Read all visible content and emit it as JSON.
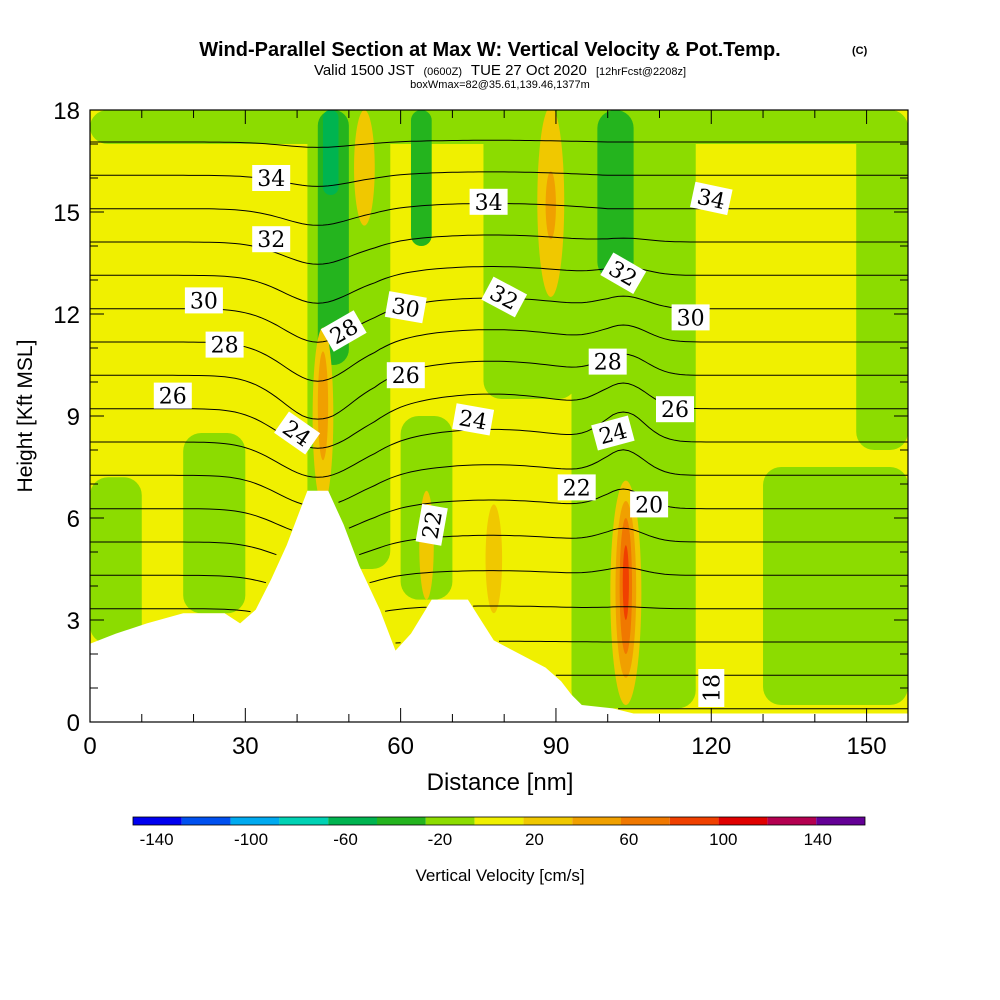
{
  "chart_data": {
    "type": "heatmap",
    "title": "Wind-Parallel Section at Max W: Vertical Velocity & Pot.Temp.",
    "title_tag": "(C)",
    "subtitle": {
      "valid": "Valid 1500 JST",
      "utc": "(0600Z)",
      "date": "TUE 27 Oct 2020",
      "fcst": "[12hrFcst@2208z]"
    },
    "box_info": "boxWmax=82@35.61,139.46,1377m",
    "xlabel": "Distance [nm]",
    "ylabel": "Height [Kft MSL]",
    "xlim": [
      0,
      158
    ],
    "ylim": [
      0,
      18
    ],
    "x_ticks": [
      0,
      30,
      60,
      90,
      120,
      150
    ],
    "y_ticks": [
      0,
      3,
      6,
      9,
      12,
      15,
      18
    ],
    "colorbar": {
      "label": "Vertical Velocity [cm/s]",
      "range": [
        -150,
        160
      ],
      "step": 20,
      "tick_values": [
        -140,
        -100,
        -60,
        -20,
        20,
        60,
        100,
        140
      ],
      "tick_labels": [
        "-140",
        "-100",
        "-60",
        "-20",
        "20",
        "60",
        "100",
        "140"
      ],
      "colors": [
        "#0000f0",
        "#0050f0",
        "#00aaf0",
        "#00d2b4",
        "#00b450",
        "#24b41e",
        "#8cdc00",
        "#f0f000",
        "#f0c800",
        "#f0a000",
        "#f07800",
        "#f04000",
        "#e00000",
        "#b40050",
        "#640096"
      ]
    },
    "field_color_levels": {
      "strong_down": "#00b450",
      "down": "#24b41e",
      "weak": "#8cdc00",
      "neutral": "#f0f000",
      "up": "#f0c800",
      "strong_up": "#f0a000",
      "max_up": "#f07800",
      "peak": "#f04000"
    },
    "terrain_profile": [
      [
        0,
        2.3
      ],
      [
        5,
        2.6
      ],
      [
        11,
        2.9
      ],
      [
        18,
        3.2
      ],
      [
        26,
        3.2
      ],
      [
        29,
        2.9
      ],
      [
        32,
        3.3
      ],
      [
        35,
        4.2
      ],
      [
        38,
        5.2
      ],
      [
        42,
        6.8
      ],
      [
        46,
        6.8
      ],
      [
        49,
        5.8
      ],
      [
        52,
        4.6
      ],
      [
        56,
        3.3
      ],
      [
        59,
        2.1
      ],
      [
        62,
        2.6
      ],
      [
        66,
        3.6
      ],
      [
        73,
        3.6
      ],
      [
        78,
        2.4
      ],
      [
        83,
        2.0
      ],
      [
        88,
        1.6
      ],
      [
        91,
        1.2
      ],
      [
        93,
        0.8
      ],
      [
        95,
        0.5
      ],
      [
        101,
        0.4
      ],
      [
        105,
        0.25
      ],
      [
        158,
        0.25
      ]
    ],
    "theta_contour_labels": [
      {
        "value": "34",
        "x": 35,
        "y": 16.0,
        "rot": 0
      },
      {
        "value": "34",
        "x": 77,
        "y": 15.3,
        "rot": 0
      },
      {
        "value": "34",
        "x": 120,
        "y": 15.4,
        "rot": 12
      },
      {
        "value": "32",
        "x": 35,
        "y": 14.2,
        "rot": 0
      },
      {
        "value": "32",
        "x": 80,
        "y": 12.5,
        "rot": 28
      },
      {
        "value": "32",
        "x": 103,
        "y": 13.2,
        "rot": 30
      },
      {
        "value": "30",
        "x": 22,
        "y": 12.4,
        "rot": 0
      },
      {
        "value": "30",
        "x": 61,
        "y": 12.2,
        "rot": 10
      },
      {
        "value": "30",
        "x": 116,
        "y": 11.9,
        "rot": 0
      },
      {
        "value": "28",
        "x": 26,
        "y": 11.1,
        "rot": 0
      },
      {
        "value": "28",
        "x": 49,
        "y": 11.5,
        "rot": -30
      },
      {
        "value": "28",
        "x": 100,
        "y": 10.6,
        "rot": 0
      },
      {
        "value": "26",
        "x": 16,
        "y": 9.6,
        "rot": 0
      },
      {
        "value": "26",
        "x": 61,
        "y": 10.2,
        "rot": 0
      },
      {
        "value": "26",
        "x": 113,
        "y": 9.2,
        "rot": 0
      },
      {
        "value": "24",
        "x": 40,
        "y": 8.5,
        "rot": 35
      },
      {
        "value": "24",
        "x": 74,
        "y": 8.9,
        "rot": 10
      },
      {
        "value": "24",
        "x": 101,
        "y": 8.5,
        "rot": -15
      },
      {
        "value": "22",
        "x": 94,
        "y": 6.9,
        "rot": 0
      },
      {
        "value": "22",
        "x": 66,
        "y": 5.8,
        "rot": -80
      },
      {
        "value": "20",
        "x": 108,
        "y": 6.4,
        "rot": 0
      },
      {
        "value": "18",
        "x": 120,
        "y": 1.0,
        "rot": -90
      }
    ],
    "w_regions": [
      {
        "level": "weak",
        "shape": "band",
        "x": 0,
        "w": 10,
        "y0": 2.3,
        "y1": 7.2
      },
      {
        "level": "weak",
        "shape": "band",
        "x": 0,
        "w": 158,
        "y0": 17.0,
        "y1": 18
      },
      {
        "level": "weak",
        "shape": "band",
        "x": 42,
        "w": 16,
        "y0": 4.5,
        "y1": 18
      },
      {
        "level": "weak",
        "shape": "band",
        "x": 76,
        "w": 18,
        "y0": 9.5,
        "y1": 18
      },
      {
        "level": "weak",
        "shape": "band",
        "x": 93,
        "w": 24,
        "y0": 0.4,
        "y1": 18
      },
      {
        "level": "weak",
        "shape": "band",
        "x": 130,
        "w": 28,
        "y0": 0.5,
        "y1": 7.5
      },
      {
        "level": "weak",
        "shape": "band",
        "x": 60,
        "w": 10,
        "y0": 3.6,
        "y1": 9.0
      },
      {
        "level": "weak",
        "shape": "band",
        "x": 18,
        "w": 12,
        "y0": 3.2,
        "y1": 8.5
      },
      {
        "level": "weak",
        "shape": "band",
        "x": 148,
        "w": 10,
        "y0": 8,
        "y1": 18
      },
      {
        "level": "down",
        "shape": "band",
        "x": 44,
        "w": 6,
        "y0": 10.5,
        "y1": 18
      },
      {
        "level": "down",
        "shape": "band",
        "x": 62,
        "w": 4,
        "y0": 14.0,
        "y1": 18
      },
      {
        "level": "down",
        "shape": "band",
        "x": 98,
        "w": 7,
        "y0": 13.0,
        "y1": 18
      },
      {
        "level": "strong_down",
        "shape": "band",
        "x": 45,
        "w": 3,
        "y0": 15.5,
        "y1": 18
      },
      {
        "level": "up",
        "shape": "blob",
        "x": 45,
        "y": 9.0,
        "rx": 2.0,
        "ry": 2.6
      },
      {
        "level": "strong_up",
        "shape": "blob",
        "x": 45,
        "y": 9.3,
        "rx": 1.0,
        "ry": 1.6
      },
      {
        "level": "up",
        "shape": "blob",
        "x": 89,
        "y": 15.3,
        "rx": 2.6,
        "ry": 2.8
      },
      {
        "level": "strong_up",
        "shape": "blob",
        "x": 89,
        "y": 15.2,
        "rx": 1.0,
        "ry": 1.0
      },
      {
        "level": "up",
        "shape": "blob",
        "x": 53,
        "y": 16.3,
        "rx": 2.0,
        "ry": 1.7
      },
      {
        "level": "up",
        "shape": "blob",
        "x": 65,
        "y": 5.2,
        "rx": 1.4,
        "ry": 1.6
      },
      {
        "level": "up",
        "shape": "blob",
        "x": 78,
        "y": 4.8,
        "rx": 1.6,
        "ry": 1.6
      },
      {
        "level": "up",
        "shape": "blob",
        "x": 103.5,
        "y": 3.8,
        "rx": 3.0,
        "ry": 3.3
      },
      {
        "level": "strong_up",
        "shape": "blob",
        "x": 103.5,
        "y": 3.9,
        "rx": 2.0,
        "ry": 2.6
      },
      {
        "level": "max_up",
        "shape": "blob",
        "x": 103.5,
        "y": 4.0,
        "rx": 1.2,
        "ry": 2.0
      },
      {
        "level": "peak",
        "shape": "blob",
        "x": 103.5,
        "y": 4.1,
        "rx": 0.6,
        "ry": 1.1
      }
    ],
    "theta_contour_levels": [
      17,
      18,
      19,
      20,
      21,
      22,
      23,
      24,
      25,
      26,
      27,
      28,
      29,
      30,
      31,
      32,
      33,
      34,
      35
    ]
  }
}
